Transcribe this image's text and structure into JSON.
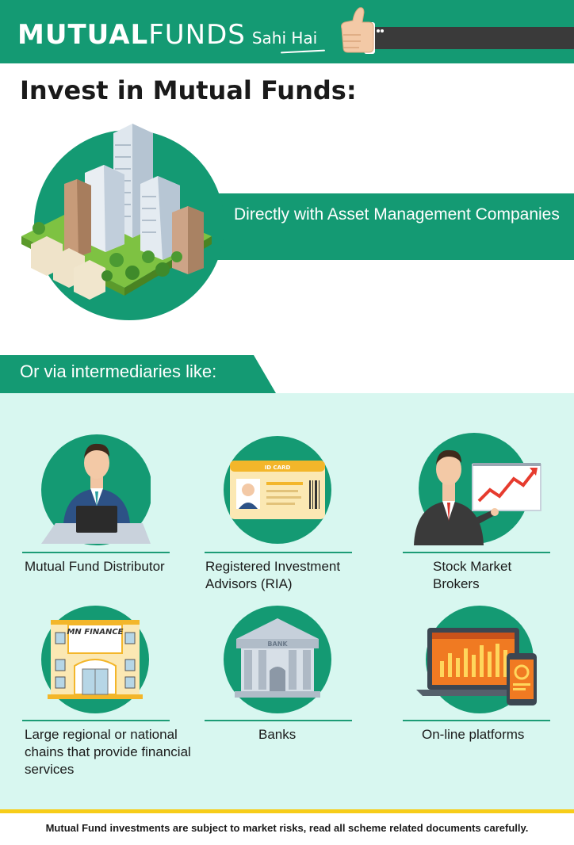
{
  "header": {
    "brand_bold": "MUTUAL",
    "brand_light": "FUNDS",
    "tagline": "Sahi Hai",
    "icon": "thumbs-up-icon"
  },
  "title": "Invest in Mutual Funds:",
  "direct": {
    "text": "Directly with Asset Management Companies",
    "icon": "city-buildings-icon"
  },
  "via": {
    "heading": "Or via intermediaries like:",
    "items": [
      {
        "label": "Mutual Fund Distributor",
        "icon": "distributor-laptop-icon"
      },
      {
        "label": "Registered Investment Advisors (RIA)",
        "icon": "id-card-icon",
        "card_text": "ID CARD"
      },
      {
        "label": "Stock Market Brokers",
        "icon": "broker-chart-icon"
      },
      {
        "label": "Large regional or national chains that provide financial services",
        "icon": "finance-building-icon",
        "sign_text": "MN FINANCE"
      },
      {
        "label": "Banks",
        "icon": "bank-building-icon",
        "sign_text": "BANK"
      },
      {
        "label": "On-line platforms",
        "icon": "online-devices-icon"
      }
    ]
  },
  "footer": {
    "disclaimer": "Mutual Fund investments are subject to market risks, read all scheme related documents carefully."
  },
  "colors": {
    "brand_green": "#149a73",
    "mint_background": "#d8f7f0",
    "footer_accent": "#f7cd1a"
  }
}
